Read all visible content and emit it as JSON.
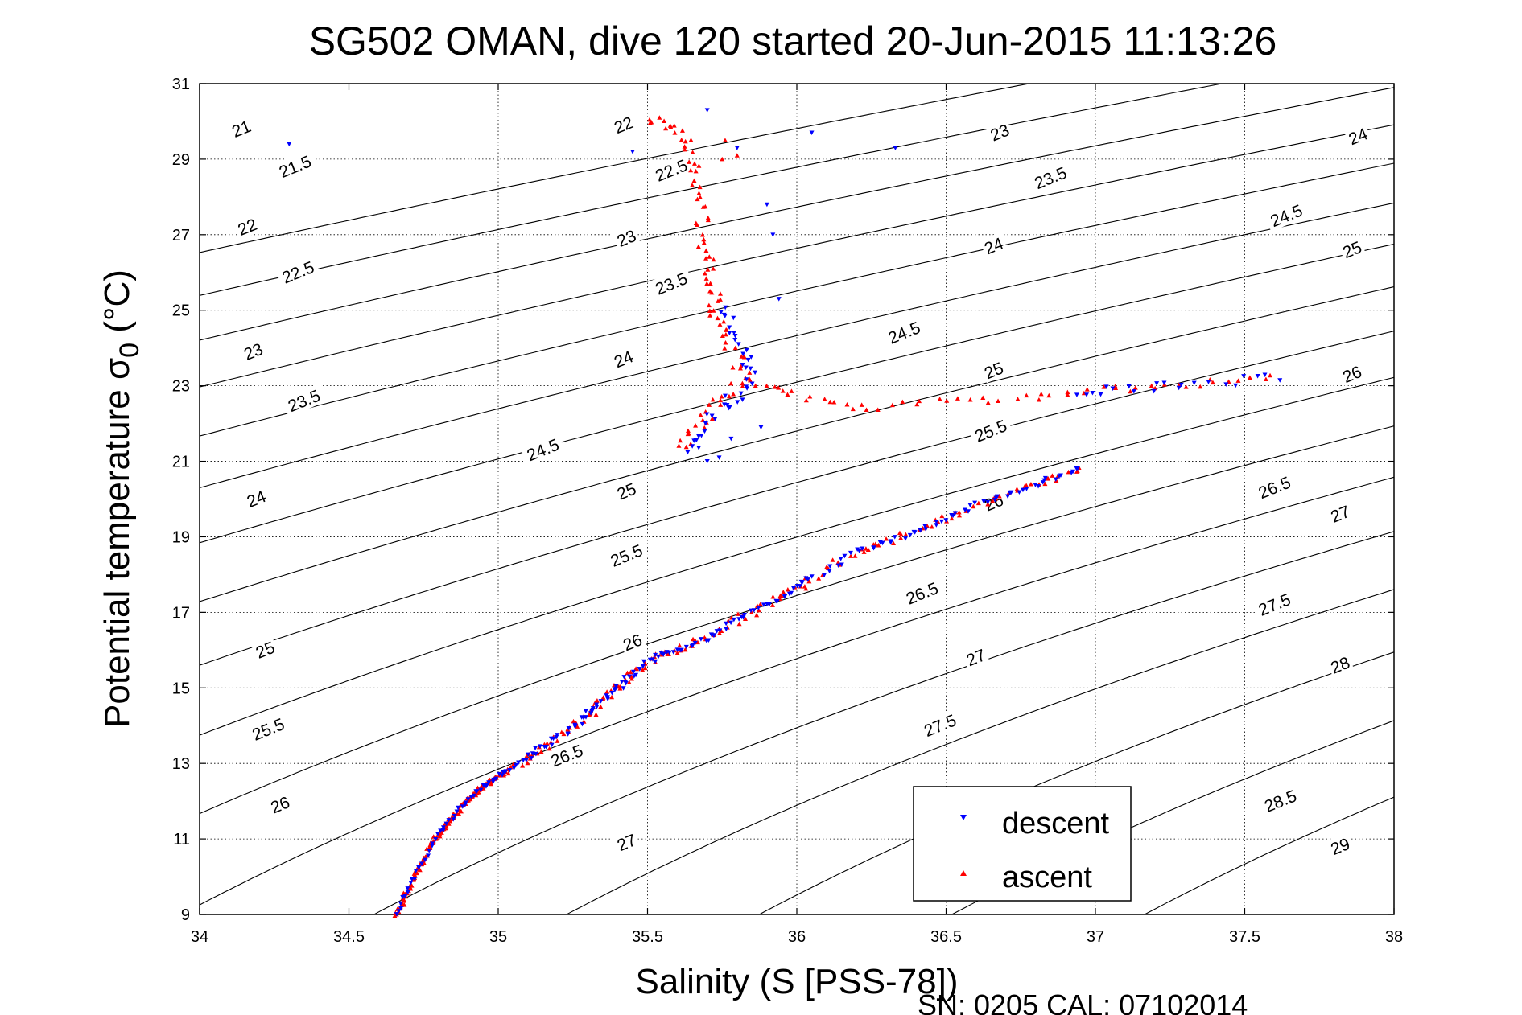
{
  "chart_data": {
    "type": "scatter",
    "title": "SG502 OMAN, dive 120 started 20-Jun-2015 11:13:26",
    "xlabel": "Salinity (S [PSS-78])",
    "ylabel_main": "Potential temperature σ",
    "ylabel_sub": "0",
    "ylabel_tail": " (°C)",
    "footer": "SN: 0205  CAL: 07102014",
    "xlim": [
      34,
      38
    ],
    "ylim": [
      9,
      31
    ],
    "x_ticks": [
      "34",
      "34.5",
      "35",
      "35.5",
      "36",
      "36.5",
      "37",
      "37.5",
      "38"
    ],
    "y_ticks": [
      "9",
      "11",
      "13",
      "15",
      "17",
      "19",
      "21",
      "23",
      "25",
      "27",
      "29",
      "31"
    ],
    "grid": true,
    "legend_position": "bottom-right",
    "contours": {
      "levels": [
        "21",
        "21.5",
        "22",
        "22.5",
        "23",
        "23.5",
        "24",
        "24.5",
        "25",
        "25.5",
        "26",
        "26.5",
        "27",
        "27.5",
        "28",
        "28.5",
        "29"
      ],
      "color": "#000000",
      "labels": [
        {
          "text": "21",
          "s": 34.14,
          "t": 29.8
        },
        {
          "text": "21.5",
          "s": 34.32,
          "t": 28.8
        },
        {
          "text": "22",
          "s": 34.16,
          "t": 27.2
        },
        {
          "text": "22.5",
          "s": 34.33,
          "t": 26.0
        },
        {
          "text": "23",
          "s": 34.18,
          "t": 23.9
        },
        {
          "text": "23.5",
          "s": 34.35,
          "t": 22.6
        },
        {
          "text": "24",
          "s": 34.19,
          "t": 20.0
        },
        {
          "text": "24.5",
          "s": 35.15,
          "t": 21.3
        },
        {
          "text": "25",
          "s": 34.22,
          "t": 16.0
        },
        {
          "text": "25.5",
          "s": 34.23,
          "t": 13.9
        },
        {
          "text": "26",
          "s": 34.27,
          "t": 11.9
        },
        {
          "text": "26.5",
          "s": 35.23,
          "t": 13.2
        },
        {
          "text": "27",
          "s": 35.43,
          "t": 10.9
        },
        {
          "text": "22",
          "s": 35.42,
          "t": 29.9
        },
        {
          "text": "22.5",
          "s": 35.58,
          "t": 28.7
        },
        {
          "text": "23",
          "s": 35.43,
          "t": 26.9
        },
        {
          "text": "23.5",
          "s": 35.58,
          "t": 25.7
        },
        {
          "text": "24",
          "s": 35.42,
          "t": 23.7
        },
        {
          "text": "25",
          "s": 35.43,
          "t": 20.2
        },
        {
          "text": "25.5",
          "s": 35.43,
          "t": 18.5
        },
        {
          "text": "26",
          "s": 35.45,
          "t": 16.2
        },
        {
          "text": "23",
          "s": 36.68,
          "t": 29.7
        },
        {
          "text": "23.5",
          "s": 36.85,
          "t": 28.5
        },
        {
          "text": "24",
          "s": 36.66,
          "t": 26.7
        },
        {
          "text": "24.5",
          "s": 36.36,
          "t": 24.4
        },
        {
          "text": "25",
          "s": 36.66,
          "t": 23.4
        },
        {
          "text": "25.5",
          "s": 36.65,
          "t": 21.8
        },
        {
          "text": "26",
          "s": 36.66,
          "t": 19.9
        },
        {
          "text": "26.5",
          "s": 36.42,
          "t": 17.5
        },
        {
          "text": "27",
          "s": 36.6,
          "t": 15.8
        },
        {
          "text": "27.5",
          "s": 36.48,
          "t": 14.0
        },
        {
          "text": "24",
          "s": 37.88,
          "t": 29.6
        },
        {
          "text": "24.5",
          "s": 37.64,
          "t": 27.5
        },
        {
          "text": "25",
          "s": 37.86,
          "t": 26.6
        },
        {
          "text": "26",
          "s": 37.86,
          "t": 23.3
        },
        {
          "text": "26.5",
          "s": 37.6,
          "t": 20.3
        },
        {
          "text": "27",
          "s": 37.82,
          "t": 19.6
        },
        {
          "text": "27.5",
          "s": 37.6,
          "t": 17.2
        },
        {
          "text": "28",
          "s": 37.82,
          "t": 15.6
        },
        {
          "text": "28.5",
          "s": 37.62,
          "t": 12.0
        },
        {
          "text": "29",
          "s": 37.82,
          "t": 10.8
        }
      ]
    },
    "series": [
      {
        "name": "descent",
        "color": "#0000ff",
        "marker": "triangle-down"
      },
      {
        "name": "ascent",
        "color": "#ff0000",
        "marker": "triangle-up"
      }
    ],
    "profile": {
      "description_points": "Shared T/S path [S, T] traced by both casts",
      "points": [
        [
          34.66,
          9.0
        ],
        [
          34.72,
          10.0
        ],
        [
          34.79,
          11.0
        ],
        [
          34.87,
          11.8
        ],
        [
          34.95,
          12.4
        ],
        [
          35.03,
          12.8
        ],
        [
          35.13,
          13.3
        ],
        [
          35.22,
          13.8
        ],
        [
          35.3,
          14.3
        ],
        [
          35.37,
          14.8
        ],
        [
          35.44,
          15.3
        ],
        [
          35.52,
          15.8
        ],
        [
          35.6,
          16.0
        ],
        [
          35.72,
          16.4
        ],
        [
          35.82,
          16.9
        ],
        [
          35.95,
          17.4
        ],
        [
          36.05,
          17.9
        ],
        [
          36.2,
          18.6
        ],
        [
          36.35,
          19.0
        ],
        [
          36.5,
          19.5
        ],
        [
          36.65,
          20.0
        ],
        [
          36.8,
          20.4
        ],
        [
          36.95,
          20.8
        ]
      ],
      "upper_points": [
        [
          35.62,
          21.3
        ],
        [
          35.66,
          21.8
        ],
        [
          35.7,
          22.3
        ],
        [
          35.76,
          22.7
        ],
        [
          35.83,
          23.2
        ],
        [
          35.8,
          23.8
        ],
        [
          35.76,
          24.4
        ],
        [
          35.73,
          24.9
        ],
        [
          35.72,
          25.4
        ],
        [
          35.7,
          26.0
        ],
        [
          35.69,
          26.7
        ],
        [
          35.68,
          27.4
        ],
        [
          35.67,
          28.2
        ],
        [
          35.66,
          28.8
        ],
        [
          35.64,
          29.4
        ],
        [
          35.58,
          29.9
        ],
        [
          35.5,
          30.1
        ]
      ],
      "intrusion_points": [
        [
          35.83,
          23.2
        ],
        [
          36.0,
          22.8
        ],
        [
          36.2,
          22.4
        ],
        [
          36.5,
          22.6
        ],
        [
          36.8,
          22.7
        ],
        [
          37.05,
          22.9
        ],
        [
          37.3,
          23.05
        ],
        [
          37.6,
          23.2
        ]
      ]
    }
  }
}
